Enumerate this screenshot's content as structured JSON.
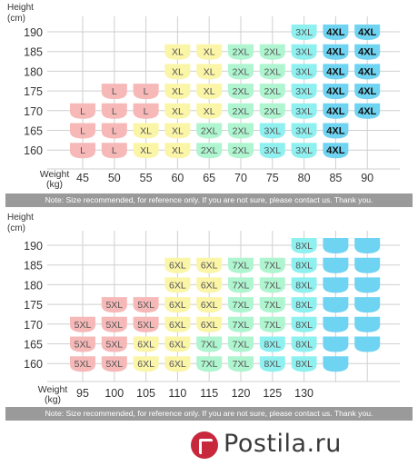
{
  "colors": {
    "grid": "#cfcfcf",
    "text": "#333333",
    "shape_colors": [
      "#f7b8b8",
      "#fbf5a8",
      "#aef5d0",
      "#8ff0f0",
      "#6fd3f2"
    ]
  },
  "watermark": {
    "text": "Postila.ru"
  },
  "chart_data": [
    {
      "type": "table",
      "y_axis_label": [
        "Height",
        "(cm)"
      ],
      "x_axis_label": [
        "Weight",
        "(kg)"
      ],
      "x_ticks": [
        "45",
        "50",
        "55",
        "60",
        "65",
        "70",
        "75",
        "80",
        "85",
        "90"
      ],
      "y_ticks": [
        "190",
        "185",
        "180",
        "175",
        "170",
        "165",
        "160"
      ],
      "note": "Note: Size recommended, for reference only. If you are not sure, please contact us. Thank you.",
      "size_colors": {
        "L": 0,
        "XL": 1,
        "2XL": 2,
        "3XL": 3,
        "4XL": 4
      },
      "rows": [
        [
          "",
          "",
          "",
          "",
          "",
          "",
          "",
          "3XL",
          "4XL",
          "4XL"
        ],
        [
          "",
          "",
          "",
          "XL",
          "XL",
          "2XL",
          "2XL",
          "3XL",
          "4XL",
          "4XL"
        ],
        [
          "",
          "",
          "",
          "XL",
          "XL",
          "2XL",
          "2XL",
          "3XL",
          "4XL",
          "4XL"
        ],
        [
          "",
          "L",
          "L",
          "XL",
          "XL",
          "2XL",
          "2XL",
          "3XL",
          "4XL",
          "4XL"
        ],
        [
          "L",
          "L",
          "L",
          "XL",
          "XL",
          "2XL",
          "2XL",
          "3XL",
          "4XL",
          "4XL"
        ],
        [
          "L",
          "L",
          "XL",
          "XL",
          "2XL",
          "2XL",
          "3XL",
          "3XL",
          "4XL",
          ""
        ],
        [
          "L",
          "L",
          "XL",
          "XL",
          "2XL",
          "2XL",
          "3XL",
          "3XL",
          "4XL",
          ""
        ]
      ]
    },
    {
      "type": "table",
      "y_axis_label": [
        "Height",
        "(cm)"
      ],
      "x_axis_label": [
        "Weight",
        "(kg)"
      ],
      "x_ticks": [
        "95",
        "100",
        "105",
        "110",
        "115",
        "120",
        "125",
        "130",
        "",
        ""
      ],
      "y_ticks": [
        "190",
        "185",
        "180",
        "175",
        "170",
        "165",
        "160"
      ],
      "note": "Note: Size recommended, for reference only. If you are not sure, please contact us. Thank you.",
      "size_colors": {
        "5XL": 0,
        "6XL": 1,
        "7XL": 2,
        "8XL": 3,
        "blank": 4
      },
      "rows": [
        [
          "",
          "",
          "",
          "",
          "",
          "",
          "",
          "8XL",
          "blank",
          "blank"
        ],
        [
          "",
          "",
          "",
          "6XL",
          "6XL",
          "7XL",
          "7XL",
          "8XL",
          "blank",
          "blank"
        ],
        [
          "",
          "",
          "",
          "6XL",
          "6XL",
          "7XL",
          "7XL",
          "8XL",
          "blank",
          "blank"
        ],
        [
          "",
          "5XL",
          "5XL",
          "6XL",
          "6XL",
          "7XL",
          "7XL",
          "8XL",
          "blank",
          "blank"
        ],
        [
          "5XL",
          "5XL",
          "5XL",
          "6XL",
          "6XL",
          "7XL",
          "7XL",
          "8XL",
          "blank",
          "blank"
        ],
        [
          "5XL",
          "5XL",
          "6XL",
          "6XL",
          "7XL",
          "7XL",
          "8XL",
          "8XL",
          "blank",
          "blank"
        ],
        [
          "5XL",
          "5XL",
          "6XL",
          "6XL",
          "7XL",
          "7XL",
          "8XL",
          "8XL",
          "blank",
          ""
        ]
      ]
    }
  ]
}
